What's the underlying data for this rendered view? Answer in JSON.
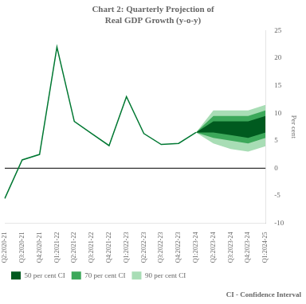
{
  "chart_data": {
    "type": "line",
    "title": "Chart 2: Quarterly Projection of\nReal GDP Growth (y-o-y)",
    "y_label": "Per cent",
    "annotation": "CI - Confidence Interval",
    "categories": [
      "Q2:2020-21",
      "Q3:2020-21",
      "Q4:2020-21",
      "Q1:2021-22",
      "Q2:2021-22",
      "Q3:2021-22",
      "Q4:2021-22",
      "Q1:2022-23",
      "Q2:2022-23",
      "Q3:2022-23",
      "Q4:2022-23",
      "Q1:2023-24",
      "Q2:2023-24",
      "Q3:2023-24",
      "Q4:2023-24",
      "Q1:2024-25"
    ],
    "series": [
      {
        "name": "50 per cent CI",
        "type": "band",
        "color": "#005A1F",
        "lower": [
          null,
          null,
          null,
          null,
          null,
          null,
          null,
          null,
          null,
          null,
          null,
          6.5,
          6.5,
          6.0,
          5.5,
          6.5
        ],
        "upper": [
          null,
          null,
          null,
          null,
          null,
          null,
          null,
          null,
          null,
          null,
          null,
          6.5,
          8.5,
          8.5,
          8.5,
          9.5
        ]
      },
      {
        "name": "70 per cent CI",
        "type": "band",
        "color": "#3CA85A",
        "lower": [
          null,
          null,
          null,
          null,
          null,
          null,
          null,
          null,
          null,
          null,
          null,
          6.5,
          5.5,
          5.0,
          4.5,
          5.5
        ],
        "upper": [
          null,
          null,
          null,
          null,
          null,
          null,
          null,
          null,
          null,
          null,
          null,
          6.5,
          9.5,
          9.5,
          9.5,
          10.5
        ]
      },
      {
        "name": "90 per cent CI",
        "type": "band",
        "color": "#A8DDB5",
        "lower": [
          null,
          null,
          null,
          null,
          null,
          null,
          null,
          null,
          null,
          null,
          null,
          6.5,
          4.5,
          3.5,
          3.0,
          4.0
        ],
        "upper": [
          null,
          null,
          null,
          null,
          null,
          null,
          null,
          null,
          null,
          null,
          null,
          6.5,
          10.5,
          10.5,
          10.5,
          11.5
        ]
      },
      {
        "type": "line",
        "color": "#007832",
        "values": [
          -5.5,
          1.5,
          2.5,
          22.0,
          8.5,
          6.3,
          4.1,
          13.0,
          6.3,
          4.3,
          4.5,
          6.5,
          null,
          null,
          null,
          null
        ]
      }
    ],
    "reference_line": 0,
    "ylim": [
      -10,
      25
    ],
    "yticks": [
      -10,
      -5,
      0,
      5,
      10,
      15,
      20,
      25
    ],
    "grid": false,
    "legend": "bottom"
  }
}
